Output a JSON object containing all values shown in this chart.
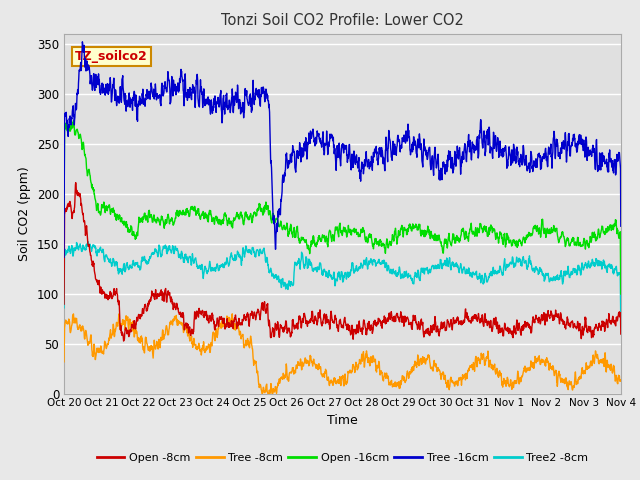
{
  "title": "Tonzi Soil CO2 Profile: Lower CO2",
  "xlabel": "Time",
  "ylabel": "Soil CO2 (ppm)",
  "ylim": [
    0,
    360
  ],
  "yticks": [
    0,
    50,
    100,
    150,
    200,
    250,
    300,
    350
  ],
  "label_text": "TZ_soilco2",
  "fig_bg_color": "#e8e8e8",
  "plot_bg_color": "#e0e0e0",
  "series": [
    {
      "name": "Open -8cm",
      "color": "#cc0000"
    },
    {
      "name": "Tree -8cm",
      "color": "#ff9900"
    },
    {
      "name": "Open -16cm",
      "color": "#00dd00"
    },
    {
      "name": "Tree -16cm",
      "color": "#0000cc"
    },
    {
      "name": "Tree2 -8cm",
      "color": "#00cccc"
    }
  ],
  "n_points": 2000,
  "x_start": 0,
  "x_end": 15.0,
  "xtick_labels": [
    "Oct 20",
    "Oct 21",
    "Oct 22",
    "Oct 23",
    "Oct 24",
    "Oct 25",
    "Oct 26",
    "Oct 27",
    "Oct 28",
    "Oct 29",
    "Oct 30",
    "Oct 31",
    "Nov 1",
    "Nov 2",
    "Nov 3",
    "Nov 4"
  ],
  "xtick_positions": [
    0,
    1,
    2,
    3,
    4,
    5,
    6,
    7,
    8,
    9,
    10,
    11,
    12,
    13,
    14,
    15
  ]
}
